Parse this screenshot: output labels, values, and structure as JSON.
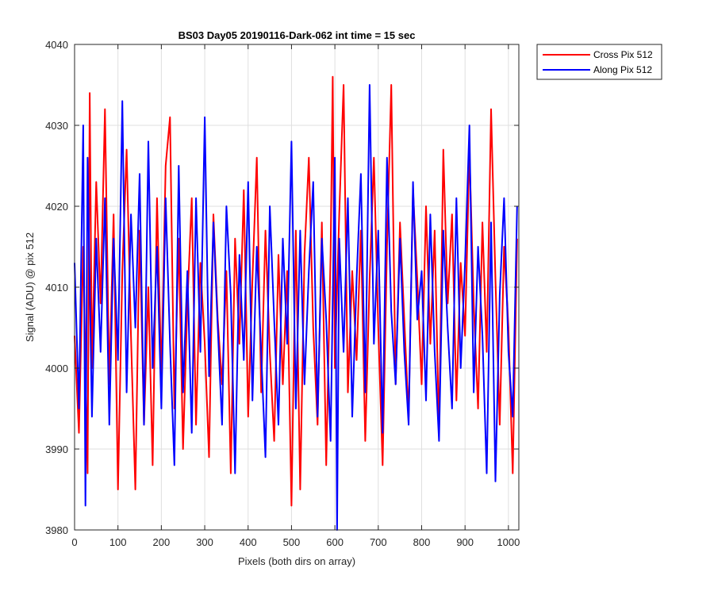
{
  "chart_data": {
    "type": "line",
    "title": "BS03 Day05 20190116-Dark-062 int time = 15 sec",
    "xlabel": "Pixels (both dirs on array)",
    "ylabel": "Signal (ADU) @ pix 512",
    "xlim": [
      0,
      1024
    ],
    "ylim": [
      3980,
      4040
    ],
    "xticks": [
      0,
      100,
      200,
      300,
      400,
      500,
      600,
      700,
      800,
      900,
      1000
    ],
    "yticks": [
      3980,
      3990,
      4000,
      4010,
      4020,
      4030,
      4040
    ],
    "grid": true,
    "legend_position": "top-right-outside",
    "series": [
      {
        "name": "Cross Pix 512",
        "color": "#ff0000",
        "note": "noisy signal, mean ~4008 ADU",
        "x": [
          0,
          10,
          20,
          30,
          35,
          40,
          50,
          60,
          70,
          80,
          90,
          100,
          110,
          120,
          130,
          140,
          150,
          160,
          170,
          180,
          190,
          200,
          210,
          220,
          230,
          240,
          250,
          260,
          270,
          280,
          290,
          300,
          310,
          320,
          330,
          340,
          350,
          360,
          370,
          380,
          390,
          400,
          410,
          420,
          430,
          440,
          450,
          460,
          470,
          480,
          490,
          500,
          510,
          520,
          530,
          540,
          550,
          560,
          570,
          580,
          590,
          595,
          600,
          610,
          620,
          630,
          640,
          650,
          660,
          670,
          680,
          690,
          700,
          710,
          720,
          730,
          740,
          750,
          760,
          770,
          780,
          790,
          800,
          810,
          820,
          830,
          840,
          850,
          860,
          870,
          880,
          890,
          900,
          910,
          920,
          930,
          940,
          950,
          960,
          970,
          980,
          990,
          1000,
          1010,
          1020
        ],
        "y": [
          4004,
          3992,
          4015,
          3987,
          4034,
          4000,
          4023,
          4008,
          4032,
          3998,
          4019,
          3985,
          4012,
          4027,
          4004,
          3985,
          4017,
          3993,
          4010,
          3988,
          4021,
          3999,
          4025,
          4031,
          3995,
          4016,
          3990,
          4008,
          4021,
          3993,
          4013,
          4003,
          3989,
          4019,
          4006,
          3998,
          4012,
          3987,
          4016,
          4003,
          4022,
          3994,
          4011,
          4026,
          3997,
          4017,
          4002,
          3991,
          4014,
          3998,
          4012,
          3983,
          4017,
          3985,
          4014,
          4026,
          4005,
          3993,
          4018,
          3988,
          4014,
          4036,
          4000,
          4019,
          4035,
          3997,
          4012,
          4001,
          4017,
          3991,
          4011,
          4026,
          4005,
          3988,
          4015,
          4035,
          3998,
          4018,
          4006,
          3994,
          4022,
          4011,
          3998,
          4020,
          4003,
          4017,
          3992,
          4027,
          4008,
          4019,
          3996,
          4013,
          4004,
          4027,
          4008,
          3995,
          4018,
          4002,
          4032,
          4011,
          3993,
          4015,
          4005,
          3987,
          4016
        ]
      },
      {
        "name": "Along Pix 512",
        "color": "#0000ff",
        "note": "noisy signal, mean ~4008 ADU",
        "x": [
          0,
          10,
          20,
          25,
          30,
          40,
          50,
          60,
          70,
          80,
          90,
          100,
          110,
          120,
          130,
          140,
          150,
          160,
          170,
          180,
          190,
          200,
          210,
          220,
          230,
          240,
          250,
          260,
          270,
          280,
          290,
          300,
          310,
          320,
          330,
          340,
          350,
          360,
          370,
          380,
          390,
          400,
          410,
          420,
          430,
          440,
          450,
          460,
          470,
          480,
          490,
          500,
          510,
          520,
          530,
          540,
          550,
          560,
          570,
          580,
          590,
          600,
          605,
          610,
          620,
          630,
          640,
          650,
          660,
          670,
          680,
          690,
          700,
          710,
          720,
          730,
          740,
          750,
          760,
          770,
          780,
          790,
          800,
          810,
          820,
          830,
          840,
          850,
          860,
          870,
          880,
          890,
          900,
          910,
          920,
          930,
          940,
          950,
          960,
          970,
          980,
          990,
          1000,
          1010,
          1020
        ],
        "y": [
          4013,
          3995,
          4030,
          3983,
          4026,
          3994,
          4016,
          4002,
          4021,
          3993,
          4016,
          4001,
          4033,
          3997,
          4019,
          4005,
          4024,
          3993,
          4028,
          4000,
          4015,
          3995,
          4021,
          4003,
          3988,
          4025,
          3997,
          4012,
          3992,
          4021,
          4002,
          4031,
          3999,
          4018,
          4005,
          3993,
          4020,
          4009,
          3987,
          4014,
          4001,
          4023,
          3996,
          4015,
          4002,
          3989,
          4020,
          4006,
          3993,
          4016,
          4003,
          4028,
          3995,
          4017,
          3998,
          4012,
          4023,
          3994,
          4016,
          4006,
          3991,
          4026,
          3980,
          4016,
          4002,
          4021,
          3994,
          4011,
          4024,
          3997,
          4035,
          4003,
          4017,
          3992,
          4026,
          4007,
          3998,
          4016,
          4002,
          3993,
          4023,
          4006,
          4012,
          3996,
          4019,
          4002,
          3991,
          4017,
          4005,
          3995,
          4021,
          4000,
          4013,
          4030,
          3997,
          4015,
          4004,
          3987,
          4018,
          3986,
          4009,
          4021,
          4002,
          3994,
          4020
        ]
      }
    ]
  }
}
